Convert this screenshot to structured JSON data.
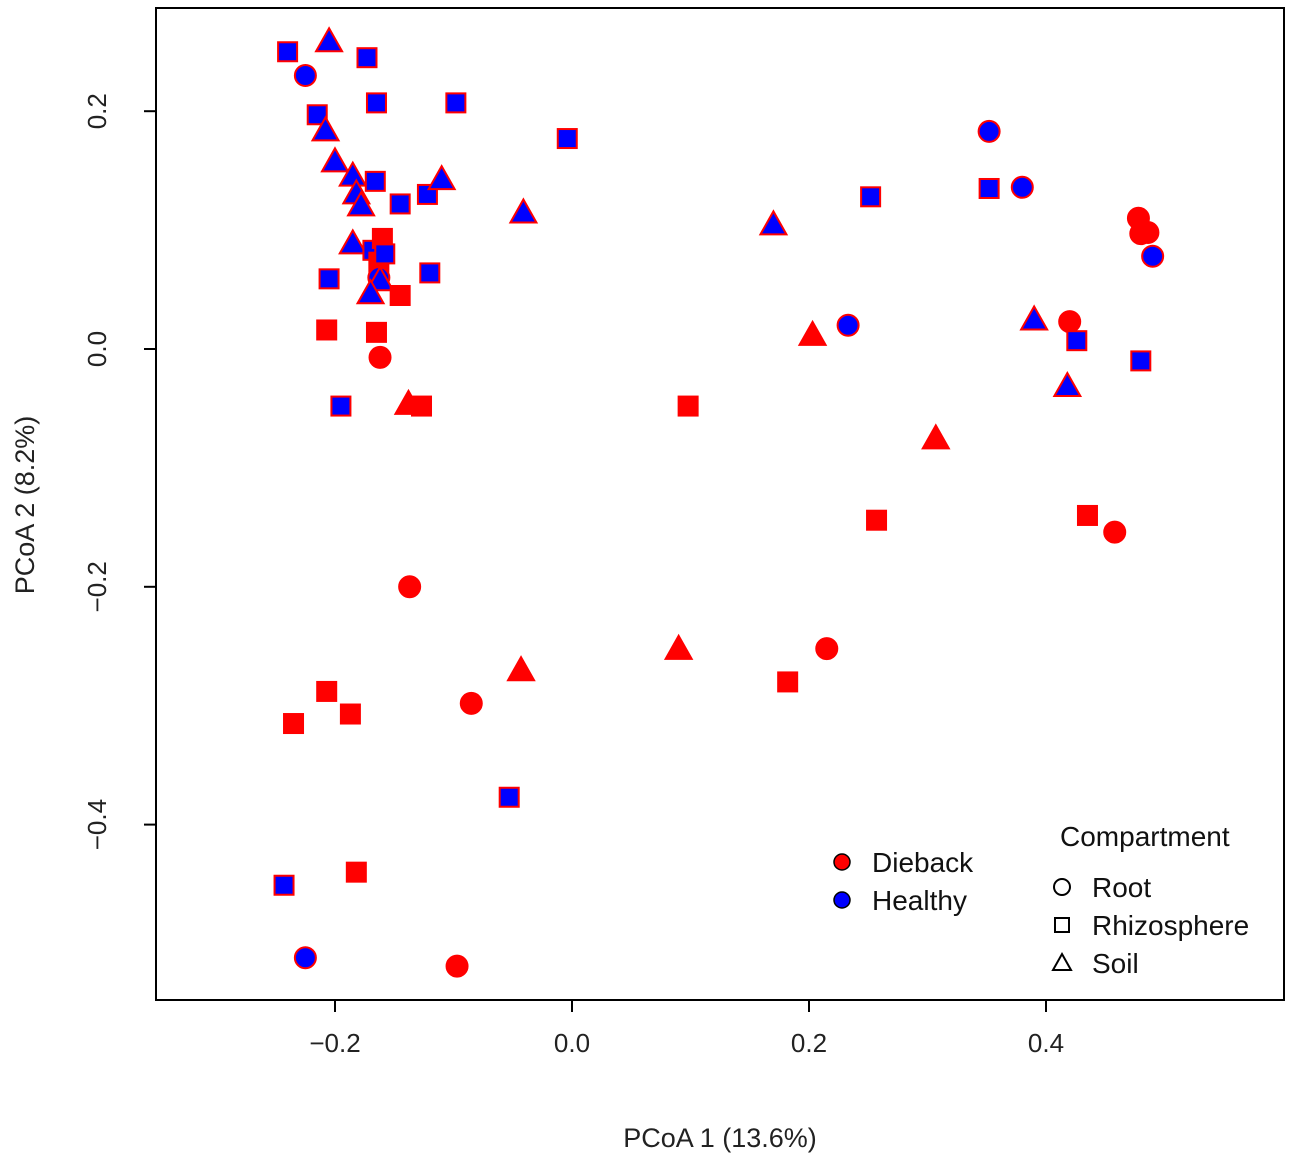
{
  "chart_data": {
    "type": "scatter",
    "title": "",
    "xlabel": "PCoA 1 (13.6%)",
    "ylabel": "PCoA 2 (8.2%)",
    "xlim": [
      -0.35,
      0.6
    ],
    "ylim": [
      -0.55,
      0.29
    ],
    "xticks": [
      -0.2,
      0.0,
      0.2,
      0.4
    ],
    "yticks": [
      -0.4,
      -0.2,
      0.0,
      0.2
    ],
    "xtick_labels": [
      "−0.2",
      "0.0",
      "0.2",
      "0.4"
    ],
    "ytick_labels": [
      "−0.4",
      "−0.2",
      "0.0",
      "0.2"
    ],
    "colors": {
      "Dieback": "#ff0000",
      "Healthy": "#0000ff",
      "outline": "#ff0000",
      "legend_outline": "#000000"
    },
    "legend_status": {
      "position": "bottom-center",
      "entries": [
        "Dieback",
        "Healthy"
      ]
    },
    "legend_compartment": {
      "position": "bottom-right",
      "title": "Compartment",
      "entries": [
        "Root",
        "Rhizosphere",
        "Soil"
      ]
    },
    "points": [
      {
        "x": -0.24,
        "y": 0.25,
        "status": "Healthy",
        "compartment": "Rhizosphere"
      },
      {
        "x": -0.225,
        "y": 0.23,
        "status": "Healthy",
        "compartment": "Root"
      },
      {
        "x": -0.205,
        "y": 0.258,
        "status": "Healthy",
        "compartment": "Soil"
      },
      {
        "x": -0.173,
        "y": 0.245,
        "status": "Healthy",
        "compartment": "Rhizosphere"
      },
      {
        "x": -0.165,
        "y": 0.207,
        "status": "Healthy",
        "compartment": "Rhizosphere"
      },
      {
        "x": -0.098,
        "y": 0.207,
        "status": "Healthy",
        "compartment": "Rhizosphere"
      },
      {
        "x": -0.215,
        "y": 0.197,
        "status": "Healthy",
        "compartment": "Rhizosphere"
      },
      {
        "x": -0.208,
        "y": 0.183,
        "status": "Healthy",
        "compartment": "Soil"
      },
      {
        "x": -0.2,
        "y": 0.157,
        "status": "Healthy",
        "compartment": "Soil"
      },
      {
        "x": -0.185,
        "y": 0.145,
        "status": "Healthy",
        "compartment": "Soil"
      },
      {
        "x": -0.182,
        "y": 0.13,
        "status": "Healthy",
        "compartment": "Soil"
      },
      {
        "x": -0.178,
        "y": 0.12,
        "status": "Healthy",
        "compartment": "Soil"
      },
      {
        "x": -0.166,
        "y": 0.141,
        "status": "Healthy",
        "compartment": "Rhizosphere"
      },
      {
        "x": -0.145,
        "y": 0.122,
        "status": "Healthy",
        "compartment": "Rhizosphere"
      },
      {
        "x": -0.122,
        "y": 0.13,
        "status": "Healthy",
        "compartment": "Rhizosphere"
      },
      {
        "x": -0.11,
        "y": 0.142,
        "status": "Healthy",
        "compartment": "Soil"
      },
      {
        "x": -0.041,
        "y": 0.114,
        "status": "Healthy",
        "compartment": "Soil"
      },
      {
        "x": -0.004,
        "y": 0.177,
        "status": "Healthy",
        "compartment": "Rhizosphere"
      },
      {
        "x": -0.185,
        "y": 0.088,
        "status": "Healthy",
        "compartment": "Soil"
      },
      {
        "x": -0.168,
        "y": 0.083,
        "status": "Healthy",
        "compartment": "Rhizosphere"
      },
      {
        "x": -0.16,
        "y": 0.093,
        "status": "Dieback",
        "compartment": "Rhizosphere"
      },
      {
        "x": -0.163,
        "y": 0.073,
        "status": "Dieback",
        "compartment": "Rhizosphere"
      },
      {
        "x": -0.158,
        "y": 0.08,
        "status": "Healthy",
        "compartment": "Rhizosphere"
      },
      {
        "x": -0.163,
        "y": 0.06,
        "status": "Healthy",
        "compartment": "Root"
      },
      {
        "x": -0.162,
        "y": 0.057,
        "status": "Healthy",
        "compartment": "Soil"
      },
      {
        "x": -0.17,
        "y": 0.046,
        "status": "Healthy",
        "compartment": "Soil"
      },
      {
        "x": -0.205,
        "y": 0.059,
        "status": "Healthy",
        "compartment": "Rhizosphere"
      },
      {
        "x": -0.145,
        "y": 0.045,
        "status": "Dieback",
        "compartment": "Rhizosphere"
      },
      {
        "x": -0.12,
        "y": 0.064,
        "status": "Healthy",
        "compartment": "Rhizosphere"
      },
      {
        "x": -0.207,
        "y": 0.016,
        "status": "Dieback",
        "compartment": "Rhizosphere"
      },
      {
        "x": -0.165,
        "y": 0.014,
        "status": "Dieback",
        "compartment": "Rhizosphere"
      },
      {
        "x": -0.162,
        "y": -0.007,
        "status": "Dieback",
        "compartment": "Root"
      },
      {
        "x": -0.195,
        "y": -0.048,
        "status": "Healthy",
        "compartment": "Rhizosphere"
      },
      {
        "x": -0.138,
        "y": -0.047,
        "status": "Dieback",
        "compartment": "Soil"
      },
      {
        "x": -0.127,
        "y": -0.048,
        "status": "Dieback",
        "compartment": "Rhizosphere"
      },
      {
        "x": -0.137,
        "y": -0.2,
        "status": "Dieback",
        "compartment": "Root"
      },
      {
        "x": -0.085,
        "y": -0.298,
        "status": "Dieback",
        "compartment": "Root"
      },
      {
        "x": -0.043,
        "y": -0.271,
        "status": "Dieback",
        "compartment": "Soil"
      },
      {
        "x": -0.053,
        "y": -0.377,
        "status": "Healthy",
        "compartment": "Rhizosphere"
      },
      {
        "x": -0.207,
        "y": -0.288,
        "status": "Dieback",
        "compartment": "Rhizosphere"
      },
      {
        "x": -0.187,
        "y": -0.307,
        "status": "Dieback",
        "compartment": "Rhizosphere"
      },
      {
        "x": -0.235,
        "y": -0.315,
        "status": "Dieback",
        "compartment": "Rhizosphere"
      },
      {
        "x": -0.182,
        "y": -0.44,
        "status": "Dieback",
        "compartment": "Rhizosphere"
      },
      {
        "x": -0.243,
        "y": -0.451,
        "status": "Healthy",
        "compartment": "Rhizosphere"
      },
      {
        "x": -0.225,
        "y": -0.512,
        "status": "Healthy",
        "compartment": "Root"
      },
      {
        "x": -0.097,
        "y": -0.519,
        "status": "Dieback",
        "compartment": "Root"
      },
      {
        "x": 0.098,
        "y": -0.048,
        "status": "Dieback",
        "compartment": "Rhizosphere"
      },
      {
        "x": 0.09,
        "y": -0.253,
        "status": "Dieback",
        "compartment": "Soil"
      },
      {
        "x": 0.182,
        "y": -0.28,
        "status": "Dieback",
        "compartment": "Rhizosphere"
      },
      {
        "x": 0.215,
        "y": -0.252,
        "status": "Dieback",
        "compartment": "Root"
      },
      {
        "x": 0.257,
        "y": -0.144,
        "status": "Dieback",
        "compartment": "Rhizosphere"
      },
      {
        "x": 0.307,
        "y": -0.076,
        "status": "Dieback",
        "compartment": "Soil"
      },
      {
        "x": 0.203,
        "y": 0.011,
        "status": "Dieback",
        "compartment": "Soil"
      },
      {
        "x": 0.233,
        "y": 0.02,
        "status": "Healthy",
        "compartment": "Root"
      },
      {
        "x": 0.17,
        "y": 0.104,
        "status": "Healthy",
        "compartment": "Soil"
      },
      {
        "x": 0.252,
        "y": 0.128,
        "status": "Healthy",
        "compartment": "Rhizosphere"
      },
      {
        "x": 0.352,
        "y": 0.183,
        "status": "Healthy",
        "compartment": "Root"
      },
      {
        "x": 0.352,
        "y": 0.135,
        "status": "Healthy",
        "compartment": "Rhizosphere"
      },
      {
        "x": 0.38,
        "y": 0.136,
        "status": "Healthy",
        "compartment": "Root"
      },
      {
        "x": 0.39,
        "y": 0.024,
        "status": "Healthy",
        "compartment": "Soil"
      },
      {
        "x": 0.42,
        "y": 0.023,
        "status": "Dieback",
        "compartment": "Root"
      },
      {
        "x": 0.426,
        "y": 0.007,
        "status": "Healthy",
        "compartment": "Rhizosphere"
      },
      {
        "x": 0.418,
        "y": -0.032,
        "status": "Healthy",
        "compartment": "Soil"
      },
      {
        "x": 0.478,
        "y": 0.11,
        "status": "Dieback",
        "compartment": "Root"
      },
      {
        "x": 0.48,
        "y": 0.097,
        "status": "Dieback",
        "compartment": "Root"
      },
      {
        "x": 0.486,
        "y": 0.098,
        "status": "Dieback",
        "compartment": "Root"
      },
      {
        "x": 0.49,
        "y": 0.078,
        "status": "Healthy",
        "compartment": "Root"
      },
      {
        "x": 0.48,
        "y": -0.01,
        "status": "Healthy",
        "compartment": "Rhizosphere"
      },
      {
        "x": 0.435,
        "y": -0.14,
        "status": "Dieback",
        "compartment": "Rhizosphere"
      },
      {
        "x": 0.458,
        "y": -0.154,
        "status": "Dieback",
        "compartment": "Root"
      }
    ]
  }
}
